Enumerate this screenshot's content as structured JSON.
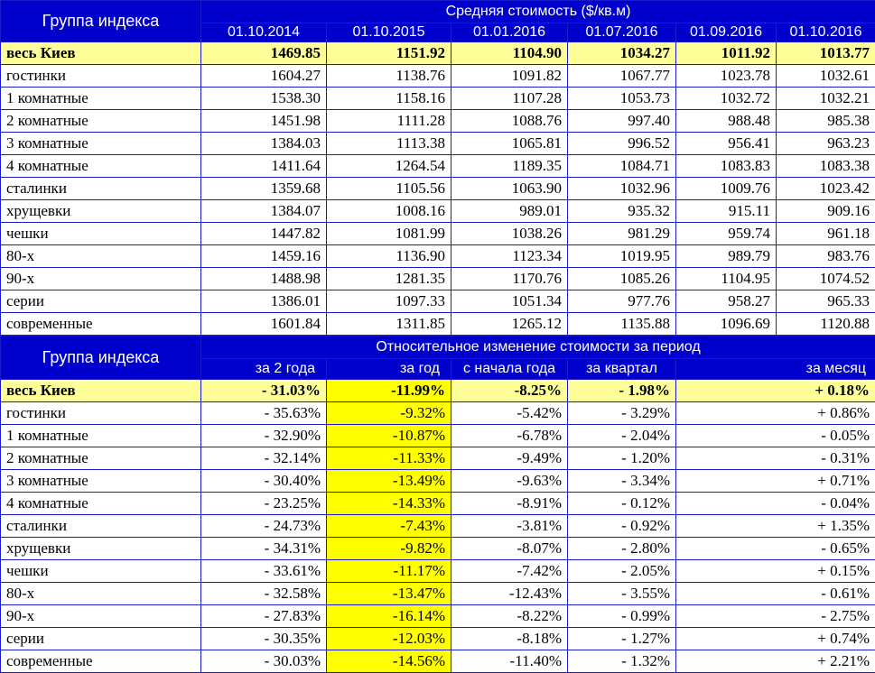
{
  "table1": {
    "group_label": "Группа индекса",
    "title": "Средняя стоимость ($/кв.м)",
    "dates": [
      "01.10.2014",
      "01.10.2015",
      "01.01.2016",
      "01.07.2016",
      "01.09.2016",
      "01.10.2016"
    ],
    "total": {
      "label": "весь Киев",
      "values": [
        "1469.85",
        "1151.92",
        "1104.90",
        "1034.27",
        "1011.92",
        "1013.77"
      ]
    },
    "rows": [
      {
        "label": "гостинки",
        "values": [
          "1604.27",
          "1138.76",
          "1091.82",
          "1067.77",
          "1023.78",
          "1032.61"
        ]
      },
      {
        "label": "1 комнатные",
        "values": [
          "1538.30",
          "1158.16",
          "1107.28",
          "1053.73",
          "1032.72",
          "1032.21"
        ]
      },
      {
        "label": "2 комнатные",
        "values": [
          "1451.98",
          "1111.28",
          "1088.76",
          "997.40",
          "988.48",
          "985.38"
        ]
      },
      {
        "label": "3 комнатные",
        "values": [
          "1384.03",
          "1113.38",
          "1065.81",
          "996.52",
          "956.41",
          "963.23"
        ]
      },
      {
        "label": "4 комнатные",
        "values": [
          "1411.64",
          "1264.54",
          "1189.35",
          "1084.71",
          "1083.83",
          "1083.38"
        ]
      },
      {
        "label": "сталинки",
        "values": [
          "1359.68",
          "1105.56",
          "1063.90",
          "1032.96",
          "1009.76",
          "1023.42"
        ]
      },
      {
        "label": "хрущевки",
        "values": [
          "1384.07",
          "1008.16",
          "989.01",
          "935.32",
          "915.11",
          "909.16"
        ]
      },
      {
        "label": "чешки",
        "values": [
          "1447.82",
          "1081.99",
          "1038.26",
          "981.29",
          "959.74",
          "961.18"
        ]
      },
      {
        "label": "80-х",
        "values": [
          "1459.16",
          "1136.90",
          "1123.34",
          "1019.95",
          "989.79",
          "983.76"
        ]
      },
      {
        "label": "90-х",
        "values": [
          "1488.98",
          "1281.35",
          "1170.76",
          "1085.26",
          "1104.95",
          "1074.52"
        ]
      },
      {
        "label": "серии",
        "values": [
          "1386.01",
          "1097.33",
          "1051.34",
          "977.76",
          "958.27",
          "965.33"
        ]
      },
      {
        "label": "современные",
        "values": [
          "1601.84",
          "1311.85",
          "1265.12",
          "1135.88",
          "1096.69",
          "1120.88"
        ]
      }
    ]
  },
  "table2": {
    "group_label": "Группа индекса",
    "title": "Относительное изменение стоимости за период",
    "periods": [
      "за 2 года",
      "за год",
      "с начала года",
      "за квартал",
      "за месяц"
    ],
    "total": {
      "label": "весь Киев",
      "values": [
        "- 31.03%",
        "-11.99%",
        "-8.25%",
        "- 1.98%",
        "+ 0.18%"
      ]
    },
    "rows": [
      {
        "label": "гостинки",
        "values": [
          "- 35.63%",
          "-9.32%",
          "-5.42%",
          "- 3.29%",
          "+ 0.86%"
        ]
      },
      {
        "label": "1 комнатные",
        "values": [
          "- 32.90%",
          "-10.87%",
          "-6.78%",
          "- 2.04%",
          "- 0.05%"
        ]
      },
      {
        "label": "2 комнатные",
        "values": [
          "- 32.14%",
          "-11.33%",
          "-9.49%",
          "- 1.20%",
          "- 0.31%"
        ]
      },
      {
        "label": "3 комнатные",
        "values": [
          "- 30.40%",
          "-13.49%",
          "-9.63%",
          "- 3.34%",
          "+ 0.71%"
        ]
      },
      {
        "label": "4 комнатные",
        "values": [
          "- 23.25%",
          "-14.33%",
          "-8.91%",
          "- 0.12%",
          "- 0.04%"
        ]
      },
      {
        "label": "сталинки",
        "values": [
          "- 24.73%",
          "-7.43%",
          "-3.81%",
          "- 0.92%",
          "+ 1.35%"
        ]
      },
      {
        "label": "хрущевки",
        "values": [
          "- 34.31%",
          "-9.82%",
          "-8.07%",
          "- 2.80%",
          "- 0.65%"
        ]
      },
      {
        "label": "чешки",
        "values": [
          "- 33.61%",
          "-11.17%",
          "-7.42%",
          "- 2.05%",
          "+ 0.15%"
        ]
      },
      {
        "label": "80-х",
        "values": [
          "- 32.58%",
          "-13.47%",
          "-12.43%",
          "- 3.55%",
          "- 0.61%"
        ]
      },
      {
        "label": "90-х",
        "values": [
          "- 27.83%",
          "-16.14%",
          "-8.22%",
          "- 0.99%",
          "- 2.75%"
        ]
      },
      {
        "label": "серии",
        "values": [
          "- 30.35%",
          "-12.03%",
          "-8.18%",
          "- 1.27%",
          "+ 0.74%"
        ]
      },
      {
        "label": "современные",
        "values": [
          "- 30.03%",
          "-14.56%",
          "-11.40%",
          "- 1.32%",
          "+ 2.21%"
        ]
      }
    ]
  },
  "colors": {
    "header_bg": "#0000cc",
    "total_row_bg": "#ffff99",
    "highlight_col": "#ffff00",
    "grid": "#1a1acc"
  }
}
